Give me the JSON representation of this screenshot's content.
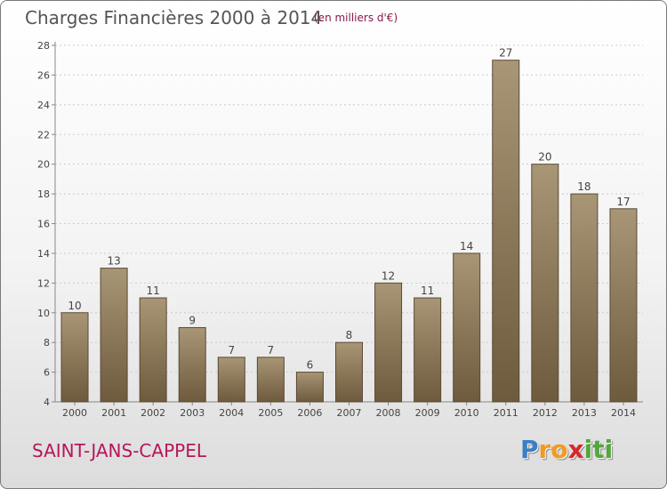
{
  "header": {
    "title": "Charges Financières 2000 à 2014",
    "subtitle": "(en milliers d'€)"
  },
  "footer": {
    "commune": "SAINT-JANS-CAPPEL",
    "logo_letters": [
      "P",
      "r",
      "o",
      "x",
      "i",
      "t",
      "i"
    ],
    "logo_colors": [
      "#3a7fc4",
      "#f39a1f",
      "#f39a1f",
      "#d9262c",
      "#52a83a",
      "#52a83a",
      "#52a83a"
    ]
  },
  "colors": {
    "bar_top": "#a89677",
    "bar_bottom": "#6e5a3c",
    "bar_border": "#5a4a34",
    "grid": "#cccccc",
    "text": "#444444"
  },
  "chart_data": {
    "type": "bar",
    "title": "Charges Financières 2000 à 2014",
    "subtitle": "(en milliers d'€)",
    "categories": [
      "2000",
      "2001",
      "2002",
      "2003",
      "2004",
      "2005",
      "2006",
      "2007",
      "2008",
      "2009",
      "2010",
      "2011",
      "2012",
      "2013",
      "2014"
    ],
    "values": [
      10,
      13,
      11,
      9,
      7,
      7,
      6,
      8,
      12,
      11,
      14,
      27,
      20,
      18,
      17
    ],
    "ylim": [
      4,
      28
    ],
    "yticks": [
      4,
      6,
      8,
      10,
      12,
      14,
      16,
      18,
      20,
      22,
      24,
      26,
      28
    ],
    "grid": true,
    "xlabel": "",
    "ylabel": ""
  }
}
